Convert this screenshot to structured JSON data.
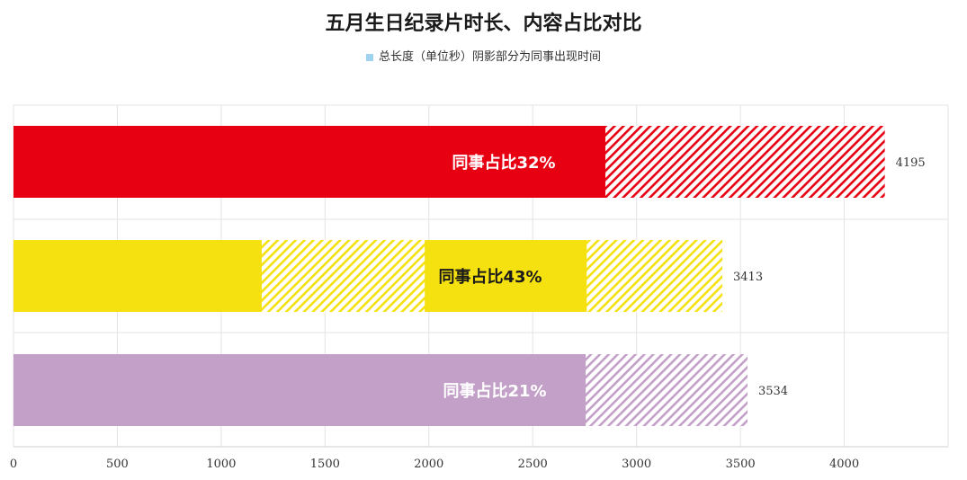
{
  "chart_data": {
    "type": "bar",
    "orientation": "horizontal",
    "title": "五月生日纪录片时长、内容占比对比",
    "legend": {
      "label": "总长度（单位秒）阴影部分为同事出现时间",
      "color": "#9fd3ef",
      "placement": "top"
    },
    "xlim": [
      0,
      4500
    ],
    "x_ticks": [
      0,
      500,
      1000,
      1500,
      2000,
      2500,
      3000,
      3500,
      4000
    ],
    "grid": {
      "vertical": true,
      "horizontal": true
    },
    "bars": [
      {
        "total": 4195,
        "total_label": "4195",
        "color": "#e60012",
        "hatch_color": "#e60012",
        "inner_label": "同事占比32%",
        "label_color": "#ffffff",
        "hatched_ranges": [
          [
            2850,
            4195
          ]
        ]
      },
      {
        "total": 3413,
        "total_label": "3413",
        "color": "#f5e10f",
        "hatch_color": "#f5e10f",
        "inner_label": "同事占比43%",
        "label_color": "#1a1a1a",
        "hatched_ranges": [
          [
            1195,
            1980
          ],
          [
            2760,
            3413
          ]
        ]
      },
      {
        "total": 3534,
        "total_label": "3534",
        "color": "#c3a0c8",
        "hatch_color": "#c3a0c8",
        "inner_label": "同事占比21%",
        "label_color": "#ffffff",
        "hatched_ranges": [
          [
            2755,
            3534
          ]
        ]
      }
    ]
  }
}
